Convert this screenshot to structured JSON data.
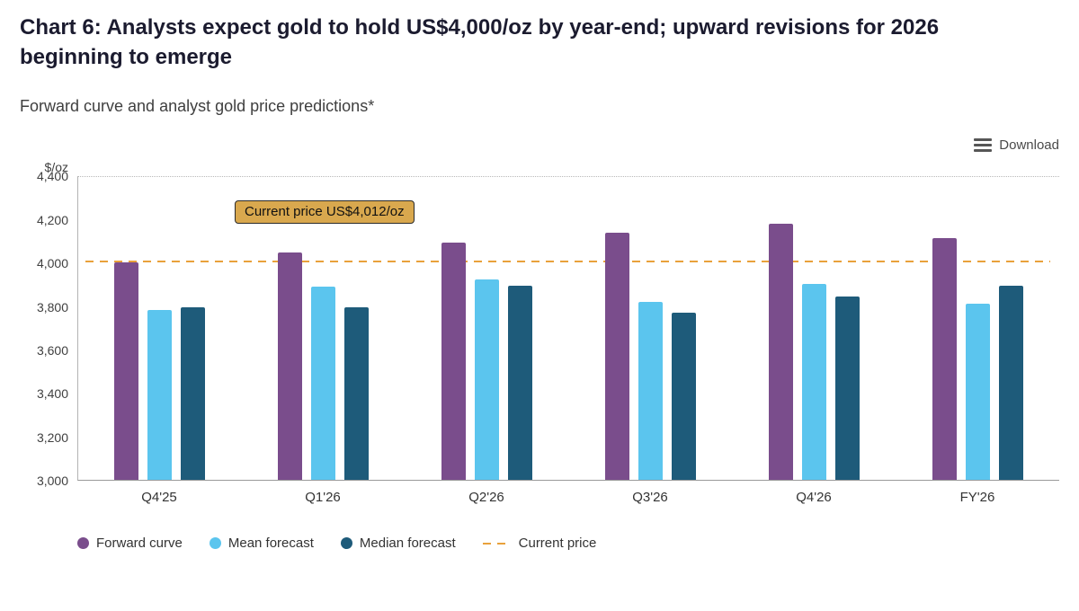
{
  "header": {
    "title": "Chart 6: Analysts expect gold to hold US$4,000/oz by year-end; upward revisions for 2026 beginning to emerge",
    "subtitle": "Forward curve and analyst gold price predictions*",
    "download_label": "Download"
  },
  "chart_data": {
    "type": "bar",
    "title": "Forward curve and analyst gold price predictions*",
    "ylabel": "$/oz",
    "ylim": [
      3000,
      4400
    ],
    "ytick_values": [
      4400,
      4200,
      4000,
      3800,
      3600,
      3400,
      3200,
      3000
    ],
    "ytick_labels": [
      "4,400",
      "4,200",
      "4,000",
      "3,800",
      "3,600",
      "3,400",
      "3,200",
      "3,000"
    ],
    "categories": [
      "Q4'25",
      "Q1'26",
      "Q2'26",
      "Q3'26",
      "Q4'26",
      "FY'26"
    ],
    "series": [
      {
        "name": "Forward curve",
        "color": "#7A4D8C",
        "values": [
          4000,
          4045,
          4090,
          4135,
          4180,
          4110
        ]
      },
      {
        "name": "Mean forecast",
        "color": "#5BC5EE",
        "values": [
          3780,
          3890,
          3920,
          3820,
          3900,
          3810
        ]
      },
      {
        "name": "Median forecast",
        "color": "#1E5B7A",
        "values": [
          3795,
          3795,
          3895,
          3770,
          3845,
          3895
        ]
      }
    ],
    "current_price": {
      "label": "Current price",
      "value": 4012,
      "color": "#E9A13B"
    },
    "annotation": {
      "text": "Current price US$4,012/oz",
      "bg": "#D9A84E",
      "border": "#2b2b2b"
    },
    "legend": [
      {
        "label": "Forward curve",
        "color": "#7A4D8C",
        "type": "dot"
      },
      {
        "label": "Mean forecast",
        "color": "#5BC5EE",
        "type": "dot"
      },
      {
        "label": "Median forecast",
        "color": "#1E5B7A",
        "type": "dot"
      },
      {
        "label": "Current price",
        "color": "#E9A13B",
        "type": "dash"
      }
    ],
    "grid": "top dotted line only",
    "legend_position": "bottom-left"
  }
}
